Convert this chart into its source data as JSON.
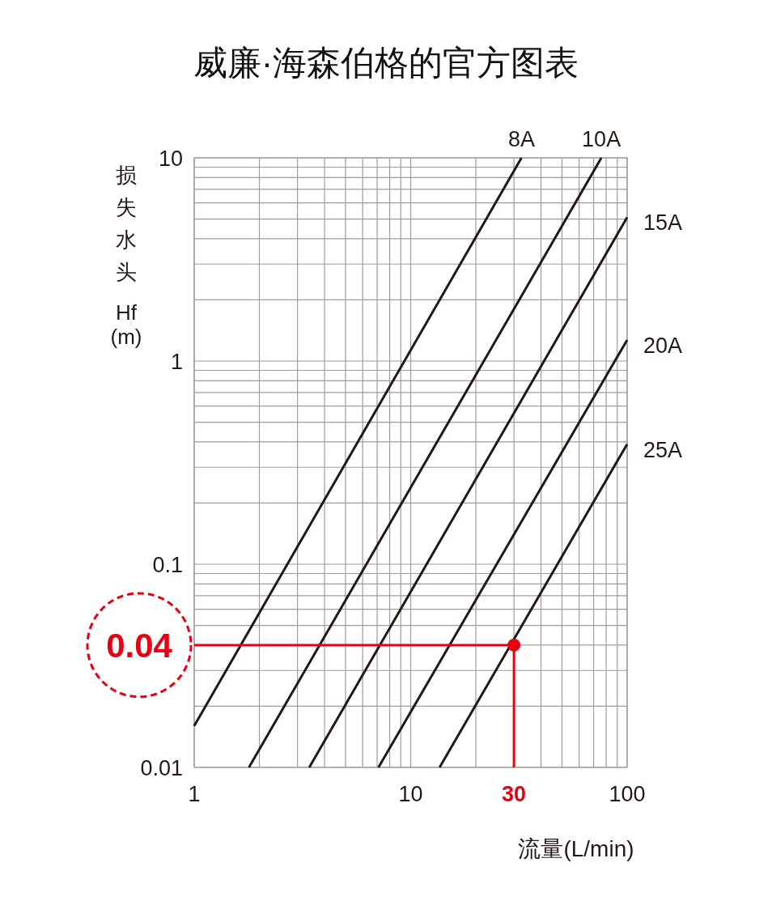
{
  "chart_data": {
    "type": "line",
    "title": "威廉·海森伯格的官方图表",
    "xlabel": "流量(L/min)",
    "ylabel": "损失水头 Hf (m)",
    "log": "xy",
    "grid": true,
    "xlim": [
      1,
      100
    ],
    "ylim": [
      0.01,
      10
    ],
    "xticks": [
      1,
      10,
      100
    ],
    "yticks": [
      0.01,
      0.1,
      1,
      10
    ],
    "series": [
      {
        "name": "8A",
        "color": "#231815",
        "x": [
          1,
          32.5
        ],
        "values": [
          0.016,
          10
        ]
      },
      {
        "name": "10A",
        "color": "#231815",
        "x": [
          1.79,
          76
        ],
        "values": [
          0.01,
          10
        ]
      },
      {
        "name": "15A",
        "color": "#231815",
        "x": [
          3.4,
          100
        ],
        "values": [
          0.01,
          5.1
        ]
      },
      {
        "name": "20A",
        "color": "#231815",
        "x": [
          7.1,
          100
        ],
        "values": [
          0.01,
          1.27
        ]
      },
      {
        "name": "25A",
        "color": "#231815",
        "x": [
          13.6,
          100
        ],
        "values": [
          0.01,
          0.39
        ]
      },
      {
        "type": "line",
        "color": "#e60012",
        "x": [
          1,
          30
        ],
        "values": [
          0.04,
          0.04
        ]
      },
      {
        "type": "line",
        "color": "#e60012",
        "x": [
          30,
          30
        ],
        "values": [
          0.04,
          0.01
        ]
      },
      {
        "type": "scatter",
        "marker": "circle",
        "color": "#e60012",
        "x": [
          30
        ],
        "values": [
          0.04
        ]
      }
    ],
    "annotations": [
      {
        "text": "0.04",
        "x": 1,
        "y": 0.04
      },
      {
        "text": "30",
        "x": 30,
        "y": 0.01
      }
    ]
  }
}
